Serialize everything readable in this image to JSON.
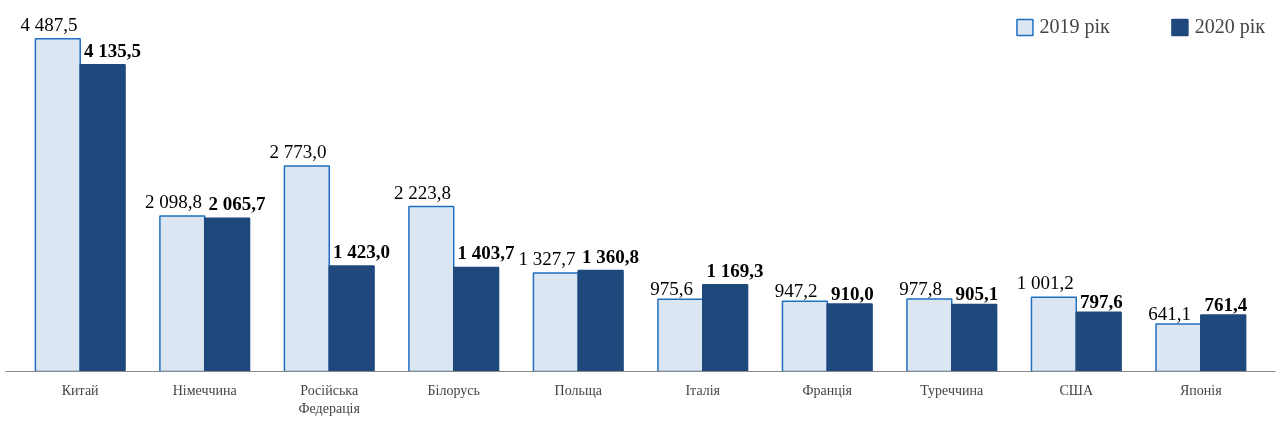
{
  "chart_data": {
    "type": "bar",
    "categories": [
      "Китай",
      "Німеччина",
      "Російська Федерація",
      "Білорусь",
      "Польща",
      "Італія",
      "Франція",
      "Туреччина",
      "США",
      "Японія"
    ],
    "series": [
      {
        "name": "2019 рік",
        "color": "#dce6f2",
        "values": [
          4487.5,
          2098.8,
          2773.0,
          2223.8,
          1327.7,
          975.6,
          947.2,
          977.8,
          1001.2,
          641.1
        ],
        "value_labels": [
          "4 487,5",
          "2 098,8",
          "2 773,0",
          "2 223,8",
          "1 327,7",
          "975,6",
          "947,2",
          "977,8",
          "1 001,2",
          "641,1"
        ]
      },
      {
        "name": "2020 рік",
        "color": "#1f497d",
        "values": [
          4135.5,
          2065.7,
          1423.0,
          1403.7,
          1360.8,
          1169.3,
          910.0,
          905.1,
          797.6,
          761.4
        ],
        "value_labels": [
          "4 135,5",
          "2 065,7",
          "1 423,0",
          "1 403,7",
          "1 360,8",
          "1 169,3",
          "910,0",
          "905,1",
          "797,6",
          "761,4"
        ]
      }
    ],
    "legend": "top right",
    "grid": false
  }
}
